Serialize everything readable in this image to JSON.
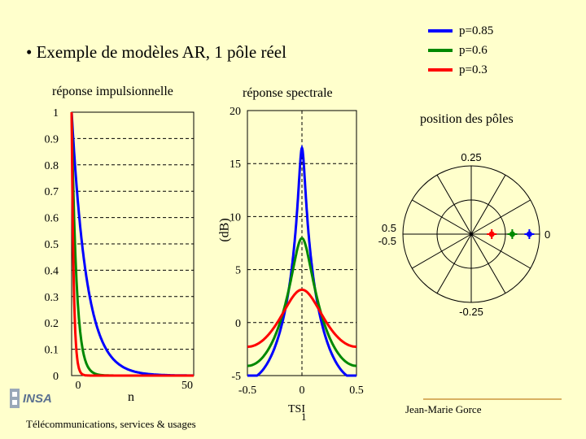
{
  "slide": {
    "title": "• Exemple de modèles AR, 1 pôle réel",
    "footer_left": "Télécommunications, services & usages",
    "footer_center": "TSI",
    "footer_page": "1",
    "footer_right": "Jean-Marie Gorce",
    "logo_text": "INSA"
  },
  "legend": [
    {
      "label": "p=0.85",
      "color": "#0000ff"
    },
    {
      "label": "p=0.6",
      "color": "#008800"
    },
    {
      "label": "p=0.3",
      "color": "#ff0000"
    }
  ],
  "chart_data": [
    {
      "type": "line",
      "title": "réponse impulsionnelle",
      "xlabel": "n",
      "ylabel": "",
      "xlim": [
        0,
        50
      ],
      "ylim": [
        0,
        1
      ],
      "xticks": [
        "0",
        "50"
      ],
      "yticks": [
        "0",
        "0.1",
        "0.2",
        "0.3",
        "0.4",
        "0.5",
        "0.6",
        "0.7",
        "0.8",
        "0.9",
        "1"
      ],
      "grid": true,
      "series": [
        {
          "name": "p=0.85",
          "pole": 0.85,
          "color": "#0000ff"
        },
        {
          "name": "p=0.6",
          "pole": 0.6,
          "color": "#008800"
        },
        {
          "name": "p=0.3",
          "pole": 0.3,
          "color": "#ff0000"
        }
      ]
    },
    {
      "type": "line",
      "title": "réponse spectrale",
      "xlabel": "",
      "ylabel": "(dB)",
      "xlim": [
        -0.5,
        0.5
      ],
      "ylim": [
        -5,
        20
      ],
      "xticks": [
        "-0.5",
        "0",
        "0.5"
      ],
      "yticks": [
        "-5",
        "0",
        "5",
        "10",
        "15",
        "20"
      ],
      "grid": true,
      "series": [
        {
          "name": "p=0.85",
          "pole": 0.85,
          "color": "#0000ff"
        },
        {
          "name": "p=0.6",
          "pole": 0.6,
          "color": "#008800"
        },
        {
          "name": "p=0.3",
          "pole": 0.3,
          "color": "#ff0000"
        }
      ]
    },
    {
      "type": "scatter",
      "title": "position des pôles",
      "angle_labels": {
        "top": "0.25",
        "bottom": "-0.25",
        "right": "0",
        "left_upper": "0.5",
        "left_lower": "-0.5"
      },
      "points": [
        {
          "name": "p=0.85",
          "x": 0.85,
          "y": 0,
          "color": "#0000ff"
        },
        {
          "name": "p=0.6",
          "x": 0.6,
          "y": 0,
          "color": "#008800"
        },
        {
          "name": "p=0.3",
          "x": 0.3,
          "y": 0,
          "color": "#ff0000"
        }
      ]
    }
  ]
}
